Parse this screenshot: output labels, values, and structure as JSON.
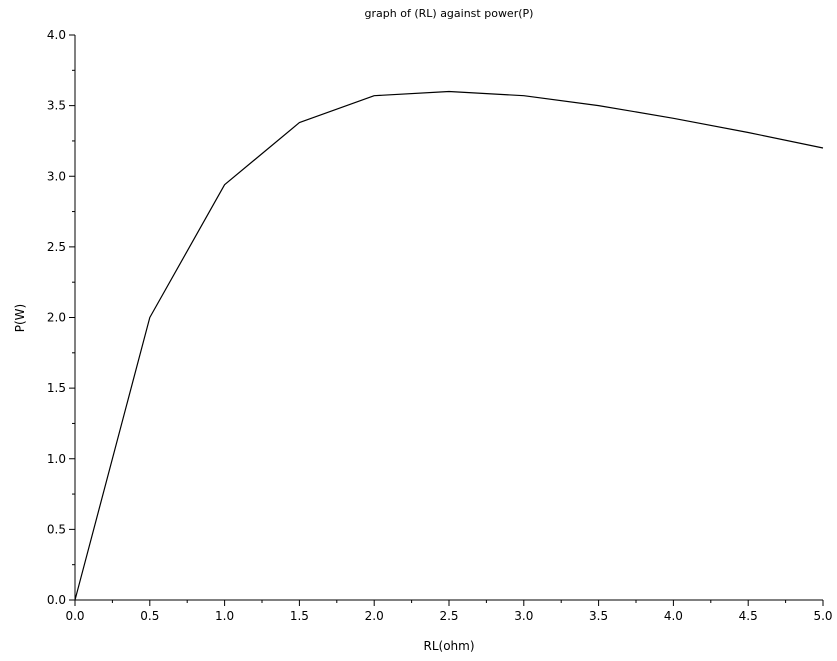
{
  "chart_data": {
    "type": "line",
    "title": "graph of (RL) against power(P)",
    "xlabel": "RL(ohm)",
    "ylabel": "P(W)",
    "xlim": [
      0.0,
      5.0
    ],
    "ylim": [
      0.0,
      4.0
    ],
    "xticks": [
      "0.0",
      "0.5",
      "1.0",
      "1.5",
      "2.0",
      "2.5",
      "3.0",
      "3.5",
      "4.0",
      "4.5",
      "5.0"
    ],
    "yticks": [
      "0.0",
      "0.5",
      "1.0",
      "1.5",
      "2.0",
      "2.5",
      "3.0",
      "3.5",
      "4.0"
    ],
    "grid": false,
    "legend": "none",
    "series": [
      {
        "color": "#000000",
        "x": [
          0.0,
          0.5,
          1.0,
          1.5,
          2.0,
          2.5,
          3.0,
          3.5,
          4.0,
          4.5,
          5.0
        ],
        "y": [
          0.0,
          2.0,
          2.94,
          3.38,
          3.57,
          3.6,
          3.57,
          3.5,
          3.41,
          3.31,
          3.2
        ]
      }
    ]
  }
}
